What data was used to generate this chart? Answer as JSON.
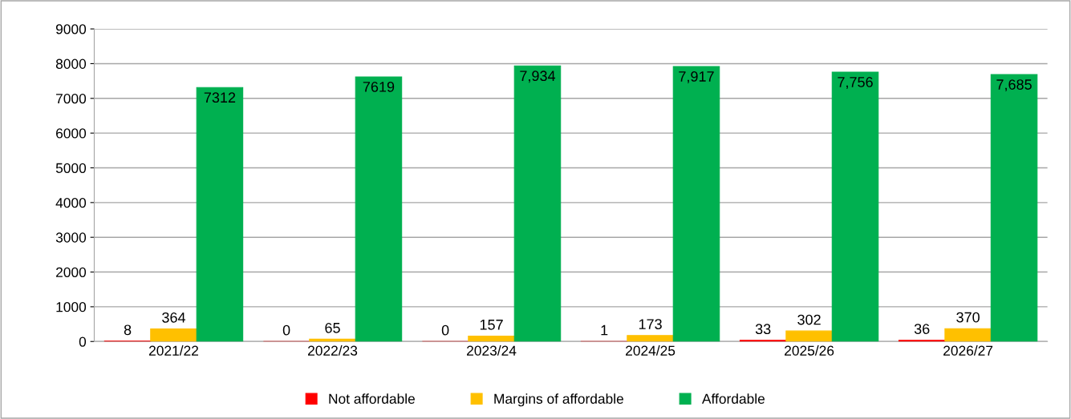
{
  "chart_data": {
    "type": "bar",
    "categories": [
      "2021/22",
      "2022/23",
      "2023/24",
      "2024/25",
      "2025/26",
      "2026/27"
    ],
    "series": [
      {
        "name": "Not affordable",
        "color": "#ff0000",
        "values": [
          8,
          0,
          0,
          1,
          33,
          36
        ],
        "value_labels": [
          "8",
          "0",
          "0",
          "1",
          "33",
          "36"
        ]
      },
      {
        "name": "Margins of affordable",
        "color": "#ffc000",
        "values": [
          364,
          65,
          157,
          173,
          302,
          370
        ],
        "value_labels": [
          "364",
          "65",
          "157",
          "173",
          "302",
          "370"
        ]
      },
      {
        "name": "Affordable",
        "color": "#00b050",
        "values": [
          7312,
          7619,
          7934,
          7917,
          7756,
          7685
        ],
        "value_labels": [
          "7312",
          "7619",
          "7,934",
          "7,917",
          "7,756",
          "7,685"
        ]
      }
    ],
    "ylim": [
      0,
      9000
    ],
    "yticks": [
      0,
      1000,
      2000,
      3000,
      4000,
      5000,
      6000,
      7000,
      8000,
      9000
    ],
    "grid": "y",
    "legend": "bottom"
  }
}
